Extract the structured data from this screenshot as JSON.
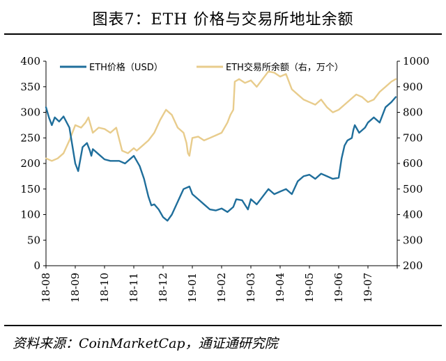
{
  "figure": {
    "title": "图表7：ETH 价格与交易所地址余额",
    "source": "资料来源：CoinMarketCap，通证通研究院"
  },
  "colors": {
    "price": "#1f6e9b",
    "balance": "#e8cc8c",
    "axis": "#000000"
  },
  "chart_data": {
    "type": "line",
    "x_categories": [
      "18-08",
      "18-09",
      "18-10",
      "18-11",
      "18-12",
      "19-01",
      "19-02",
      "19-03",
      "19-04",
      "19-05",
      "19-06",
      "19-07"
    ],
    "y_left": {
      "min": 0,
      "max": 400,
      "ticks": [
        0,
        50,
        100,
        150,
        200,
        250,
        300,
        350,
        400
      ]
    },
    "y_right": {
      "min": 200,
      "max": 1000,
      "ticks": [
        200,
        300,
        400,
        500,
        600,
        700,
        800,
        900,
        1000
      ]
    },
    "legend": {
      "placement": "top"
    },
    "series": [
      {
        "name": "ETH价格（USD）",
        "axis": "left",
        "color": "#1f6e9b",
        "x": [
          0,
          0.1,
          0.2,
          0.3,
          0.45,
          0.6,
          0.8,
          1.0,
          1.1,
          1.25,
          1.4,
          1.5,
          1.55,
          1.6,
          1.8,
          2.0,
          2.2,
          2.5,
          2.7,
          2.9,
          3.0,
          3.1,
          3.2,
          3.35,
          3.5,
          3.6,
          3.7,
          3.85,
          4.0,
          4.15,
          4.3,
          4.5,
          4.7,
          4.9,
          5.0,
          5.2,
          5.4,
          5.6,
          5.8,
          6.0,
          6.2,
          6.4,
          6.5,
          6.7,
          6.9,
          7.0,
          7.2,
          7.4,
          7.6,
          7.8,
          8.0,
          8.2,
          8.4,
          8.6,
          8.8,
          9.0,
          9.2,
          9.4,
          9.6,
          9.8,
          10.0,
          10.1,
          10.2,
          10.3,
          10.45,
          10.5,
          10.55,
          10.7,
          10.9,
          11.0,
          11.2,
          11.4,
          11.6,
          11.8,
          11.95
        ],
        "y": [
          310,
          290,
          275,
          290,
          282,
          292,
          270,
          200,
          185,
          232,
          240,
          225,
          215,
          228,
          218,
          208,
          205,
          205,
          200,
          210,
          215,
          205,
          195,
          170,
          135,
          118,
          120,
          110,
          95,
          88,
          100,
          125,
          150,
          155,
          140,
          130,
          120,
          110,
          108,
          112,
          105,
          115,
          130,
          128,
          110,
          130,
          120,
          135,
          150,
          140,
          145,
          150,
          140,
          165,
          175,
          178,
          170,
          180,
          175,
          170,
          172,
          210,
          235,
          245,
          250,
          265,
          275,
          260,
          270,
          280,
          290,
          280,
          310,
          320,
          330
        ]
      },
      {
        "name": "ETH交易所余额（右，万个）",
        "axis": "right",
        "color": "#e8cc8c",
        "x": [
          0,
          0.2,
          0.4,
          0.6,
          0.8,
          1.0,
          1.2,
          1.35,
          1.45,
          1.6,
          1.8,
          2.0,
          2.2,
          2.4,
          2.6,
          2.8,
          3.0,
          3.1,
          3.3,
          3.5,
          3.7,
          3.9,
          4.1,
          4.3,
          4.5,
          4.7,
          4.8,
          4.85,
          4.9,
          5.0,
          5.2,
          5.4,
          5.6,
          5.8,
          6.0,
          6.2,
          6.3,
          6.4,
          6.45,
          6.6,
          6.8,
          7.0,
          7.2,
          7.4,
          7.6,
          7.8,
          8.0,
          8.2,
          8.4,
          8.6,
          8.8,
          9.0,
          9.2,
          9.4,
          9.6,
          9.8,
          10.0,
          10.2,
          10.4,
          10.6,
          10.8,
          11.0,
          11.2,
          11.4,
          11.6,
          11.8,
          11.95
        ],
        "y": [
          620,
          610,
          620,
          640,
          690,
          750,
          740,
          760,
          780,
          720,
          740,
          735,
          720,
          740,
          650,
          640,
          660,
          650,
          670,
          690,
          720,
          770,
          810,
          790,
          740,
          720,
          680,
          640,
          630,
          700,
          705,
          690,
          700,
          710,
          720,
          760,
          790,
          810,
          920,
          930,
          915,
          925,
          900,
          930,
          960,
          955,
          940,
          950,
          890,
          870,
          850,
          840,
          830,
          850,
          820,
          800,
          810,
          830,
          850,
          870,
          860,
          840,
          850,
          880,
          900,
          920,
          930
        ]
      }
    ]
  }
}
